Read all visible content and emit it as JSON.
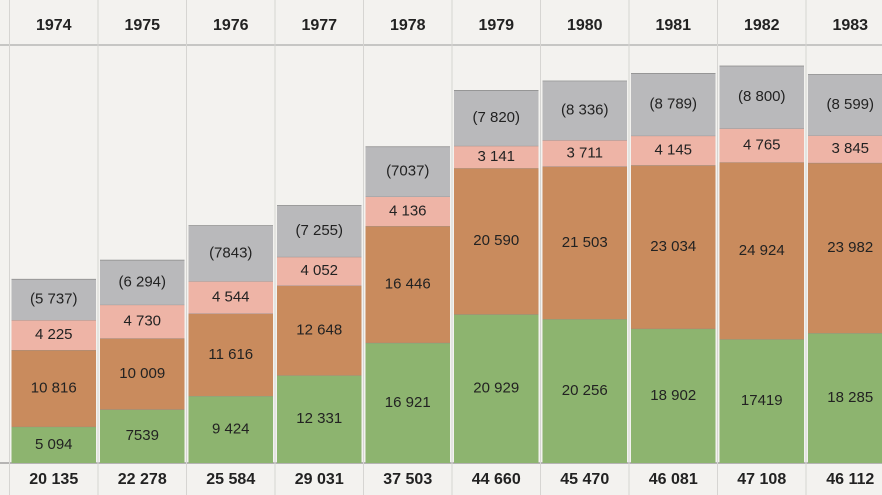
{
  "chart_data": {
    "type": "stacked_bar",
    "categories": [
      "1974",
      "1975",
      "1976",
      "1977",
      "1978",
      "1979",
      "1980",
      "1981",
      "1982",
      "1983"
    ],
    "series": [
      {
        "color": "#8db46f",
        "values": [
          5094,
          7539,
          9424,
          12331,
          16921,
          20929,
          20256,
          18902,
          17419,
          18285
        ],
        "value_labels": [
          "5 094",
          "7539",
          "9 424",
          "12 331",
          "16 921",
          "20 929",
          "20 256",
          "18 902",
          "17419",
          "18 285"
        ]
      },
      {
        "color": "#c98b5d",
        "values": [
          10816,
          10009,
          11616,
          12648,
          16446,
          20590,
          21503,
          23034,
          24924,
          23982
        ],
        "value_labels": [
          "10 816",
          "10 009",
          "11 616",
          "12 648",
          "16 446",
          "20 590",
          "21 503",
          "23 034",
          "24 924",
          "23 982"
        ]
      },
      {
        "color": "#eeb4a6",
        "values": [
          4225,
          4730,
          4544,
          4052,
          4136,
          3141,
          3711,
          4145,
          4765,
          3845
        ],
        "value_labels": [
          "4 225",
          "4 730",
          "4 544",
          "4 052",
          "4 136",
          "3 141",
          "3 711",
          "4 145",
          "4 765",
          "3 845"
        ]
      },
      {
        "color": "#b9b9bb",
        "values": [
          -5737,
          -6294,
          -7843,
          -7255,
          -7037,
          -7820,
          -8336,
          -8789,
          -8800,
          -8599
        ],
        "value_labels": [
          "(5 737)",
          "(6 294)",
          "(7843)",
          "(7 255)",
          "(7037)",
          "(7 820)",
          "(8 336)",
          "(8 789)",
          "(8 800)",
          "(8 599)"
        ]
      }
    ],
    "totals": [
      {
        "value": 20135,
        "label": "20 135"
      },
      {
        "value": 22278,
        "label": "22 278"
      },
      {
        "value": 25584,
        "label": "25 584"
      },
      {
        "value": 29031,
        "label": "29 031"
      },
      {
        "value": 37503,
        "label": "37 503"
      },
      {
        "value": 44660,
        "label": "44 660"
      },
      {
        "value": 45470,
        "label": "45 470"
      },
      {
        "value": 46081,
        "label": "46 081"
      },
      {
        "value": 47108,
        "label": "47 108"
      },
      {
        "value": 46112,
        "label": "46 112"
      }
    ]
  }
}
